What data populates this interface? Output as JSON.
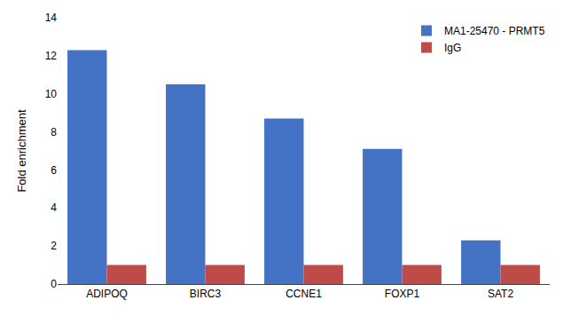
{
  "chart_data": {
    "type": "bar",
    "categories": [
      "ADIPOQ",
      "BIRC3",
      "CCNE1",
      "FOXP1",
      "SAT2"
    ],
    "series": [
      {
        "name": "MA1-25470 - PRMT5",
        "color": "#4472C4",
        "values": [
          12.3,
          10.5,
          8.7,
          7.1,
          2.3
        ]
      },
      {
        "name": "IgG",
        "color": "#BE4B48",
        "values": [
          1.0,
          1.0,
          1.0,
          1.0,
          1.0
        ]
      }
    ],
    "ylabel": "Fold enrichment",
    "ylim": [
      0,
      14
    ],
    "yticks": [
      0,
      2,
      4,
      6,
      8,
      10,
      12,
      14
    ],
    "grid": false,
    "legend": "upper right"
  }
}
